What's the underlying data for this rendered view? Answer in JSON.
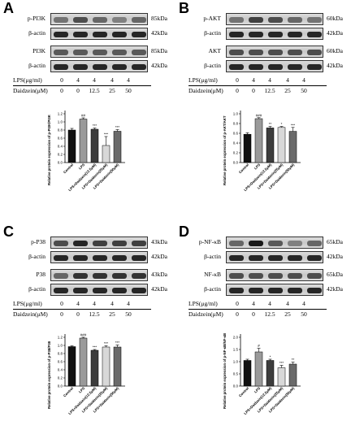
{
  "panels": [
    {
      "letter": "A",
      "blots": [
        {
          "label": "p-PI3K",
          "kda": "85kDa",
          "intensity": [
            0.55,
            0.7,
            0.6,
            0.5,
            0.6
          ]
        },
        {
          "label": "β-actin",
          "kda": "42kDa",
          "intensity": [
            0.85,
            0.85,
            0.85,
            0.85,
            0.85
          ]
        },
        {
          "label": "PI3K",
          "kda": "85kDa",
          "intensity": [
            0.65,
            0.65,
            0.65,
            0.65,
            0.65
          ]
        },
        {
          "label": "β-actin",
          "kda": "42kDa",
          "intensity": [
            0.85,
            0.85,
            0.85,
            0.85,
            0.85
          ]
        }
      ],
      "treat": {
        "lps_label": "LPS(μg/ml)",
        "lps": [
          "0",
          "4",
          "4",
          "4",
          "4"
        ],
        "dz_label": "Daidzein(μM)",
        "dz": [
          "0",
          "0",
          "12.5",
          "25",
          "50"
        ]
      },
      "chart": {
        "ylabel": "Relative protein expression of p-PI3K/PI3K",
        "yticks": [
          "0.0",
          "0.2",
          "0.4",
          "0.6",
          "0.8",
          "1.0",
          "1.2"
        ],
        "ymax": 1.2,
        "categories": [
          "Control",
          "LPS",
          "LPS+Daidzein(12.5μM)",
          "LPS+Daidzein(25μM)",
          "LPS+Daidzein(50μM)"
        ],
        "values": [
          0.8,
          1.07,
          0.82,
          0.42,
          0.77
        ],
        "errors": [
          0.04,
          0.03,
          0.03,
          0.22,
          0.04
        ],
        "sig": [
          "",
          "##",
          "***",
          "***",
          "***"
        ]
      }
    },
    {
      "letter": "B",
      "blots": [
        {
          "label": "p-AKT",
          "kda": "60kDa",
          "intensity": [
            0.55,
            0.75,
            0.7,
            0.6,
            0.55
          ]
        },
        {
          "label": "β-actin",
          "kda": "42kDa",
          "intensity": [
            0.85,
            0.85,
            0.85,
            0.85,
            0.85
          ]
        },
        {
          "label": "AKT",
          "kda": "60kDa",
          "intensity": [
            0.7,
            0.7,
            0.7,
            0.7,
            0.7
          ]
        },
        {
          "label": "β-actin",
          "kda": "42kDa",
          "intensity": [
            0.85,
            0.85,
            0.85,
            0.85,
            0.85
          ]
        }
      ],
      "treat": {
        "lps_label": "LPS(μg/ml)",
        "lps": [
          "0",
          "4",
          "4",
          "4",
          "4"
        ],
        "dz_label": "Daidzein(μM)",
        "dz": [
          "0",
          "0",
          "12.5",
          "25",
          "50"
        ]
      },
      "chart": {
        "ylabel": "Relative protein expression of p-AKT/AKT",
        "yticks": [
          "0.0",
          "0.2",
          "0.4",
          "0.6",
          "0.8",
          "1.0"
        ],
        "ymax": 1.0,
        "categories": [
          "Control",
          "LPS",
          "LPS+Daidzein(12.5μM)",
          "LPS+Daidzein(25μM)",
          "LPS+Daidzein(50μM)"
        ],
        "values": [
          0.58,
          0.9,
          0.71,
          0.72,
          0.64
        ],
        "errors": [
          0.03,
          0.02,
          0.03,
          0.02,
          0.08
        ],
        "sig": [
          "",
          "###",
          "**",
          "*",
          "***"
        ]
      }
    },
    {
      "letter": "C",
      "blots": [
        {
          "label": "p-P38",
          "kda": "43kDa",
          "intensity": [
            0.7,
            0.85,
            0.75,
            0.75,
            0.75
          ]
        },
        {
          "label": "β-actin",
          "kda": "42kDa",
          "intensity": [
            0.85,
            0.85,
            0.85,
            0.85,
            0.85
          ]
        },
        {
          "label": "P38",
          "kda": "43kDa",
          "intensity": [
            0.6,
            0.8,
            0.8,
            0.8,
            0.8
          ]
        },
        {
          "label": "β-actin",
          "kda": "42kDa",
          "intensity": [
            0.85,
            0.85,
            0.85,
            0.85,
            0.85
          ]
        }
      ],
      "treat": {
        "lps_label": "LPS(μg/ml)",
        "lps": [
          "0",
          "4",
          "4",
          "4",
          "4"
        ],
        "dz_label": "Daidzein(μM)",
        "dz": [
          "0",
          "0",
          "12.5",
          "25",
          "50"
        ]
      },
      "chart": {
        "ylabel": "Relative protein expression of p-P38/P38",
        "yticks": [
          "0.0",
          "0.2",
          "0.4",
          "0.6",
          "0.8",
          "1.0",
          "1.2"
        ],
        "ymax": 1.2,
        "categories": [
          "Control",
          "LPS",
          "LPS+Daidzein(12.5μM)",
          "LPS+Daidzein(25μM)",
          "LPS+Daidzein(50μM)"
        ],
        "values": [
          0.97,
          1.18,
          0.88,
          0.96,
          0.96
        ],
        "errors": [
          0.02,
          0.02,
          0.02,
          0.03,
          0.05
        ],
        "sig": [
          "",
          "###",
          "***",
          "***",
          "***"
        ]
      }
    },
    {
      "letter": "D",
      "blots": [
        {
          "label": "p-NF-κB",
          "kda": "65kDa",
          "intensity": [
            0.6,
            0.9,
            0.65,
            0.5,
            0.6
          ]
        },
        {
          "label": "β-actin",
          "kda": "42kDa",
          "intensity": [
            0.85,
            0.85,
            0.85,
            0.85,
            0.85
          ]
        },
        {
          "label": "NF-κB",
          "kda": "65kDa",
          "intensity": [
            0.7,
            0.7,
            0.7,
            0.7,
            0.7
          ]
        },
        {
          "label": "β-actin",
          "kda": "42kDa",
          "intensity": [
            0.85,
            0.85,
            0.85,
            0.85,
            0.85
          ]
        }
      ],
      "treat": {
        "lps_label": "LPS(μg/ml)",
        "lps": [
          "0",
          "4",
          "4",
          "4",
          "4"
        ],
        "dz_label": "Daidzein(μM)",
        "dz": [
          "0",
          "0",
          "12.5",
          "25",
          "50"
        ]
      },
      "chart": {
        "ylabel": "Relative protein expression of p-NF-κB/NF-κB",
        "yticks": [
          "0.0",
          "0.5",
          "1.0",
          "1.5",
          "2.0"
        ],
        "ymax": 2.0,
        "categories": [
          "Control",
          "LPS",
          "LPS+Daidzein(12.5μM)",
          "LPS+Daidzein(25μM)",
          "LPS+Daidzein(50μM)"
        ],
        "values": [
          1.05,
          1.4,
          1.05,
          0.75,
          0.9
        ],
        "errors": [
          0.05,
          0.15,
          0.05,
          0.1,
          0.08
        ],
        "sig": [
          "",
          "#",
          "*",
          "***",
          "**"
        ]
      }
    }
  ],
  "bar_colors": [
    "#111111",
    "#9a9a9a",
    "#3c3c3c",
    "#d8d8d8",
    "#6a6a6a"
  ]
}
